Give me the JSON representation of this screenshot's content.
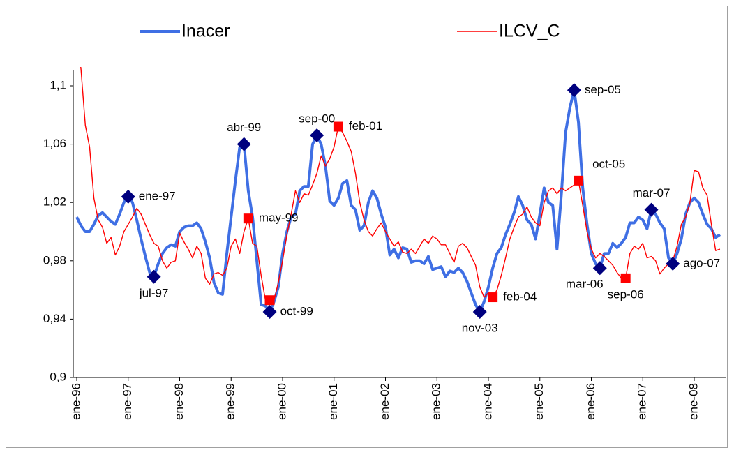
{
  "chart_data": {
    "type": "line",
    "categories": [
      "ene-96",
      null,
      null,
      null,
      null,
      null,
      null,
      null,
      null,
      null,
      null,
      null,
      "ene-97",
      null,
      null,
      null,
      null,
      null,
      null,
      null,
      null,
      null,
      null,
      null,
      "ene-98",
      null,
      null,
      null,
      null,
      null,
      null,
      null,
      null,
      null,
      null,
      null,
      "ene-99",
      null,
      null,
      null,
      null,
      null,
      null,
      null,
      null,
      null,
      null,
      null,
      "ene-00",
      null,
      null,
      null,
      null,
      null,
      null,
      null,
      null,
      null,
      null,
      null,
      "ene-01",
      null,
      null,
      null,
      null,
      null,
      null,
      null,
      null,
      null,
      null,
      null,
      "ene-02",
      null,
      null,
      null,
      null,
      null,
      null,
      null,
      null,
      null,
      null,
      null,
      "ene-03",
      null,
      null,
      null,
      null,
      null,
      null,
      null,
      null,
      null,
      null,
      null,
      "ene-04",
      null,
      null,
      null,
      null,
      null,
      null,
      null,
      null,
      null,
      null,
      null,
      "ene-05",
      null,
      null,
      null,
      null,
      null,
      null,
      null,
      null,
      null,
      null,
      null,
      "ene-06",
      null,
      null,
      null,
      null,
      null,
      null,
      null,
      null,
      null,
      null,
      null,
      "ene-07",
      null,
      null,
      null,
      null,
      null,
      null,
      null,
      null,
      null,
      null,
      null,
      "ene-08",
      null,
      null,
      null,
      null,
      null,
      null
    ],
    "series": [
      {
        "name": "Inacer",
        "color": "#3f6fe4",
        "marker": "diamond",
        "marker_color": "#00007f",
        "values": [
          1.01,
          1.004,
          1.0,
          1.0,
          1.005,
          1.011,
          1.013,
          1.01,
          1.007,
          1.005,
          1.012,
          1.02,
          1.024,
          1.02,
          1.008,
          0.995,
          0.983,
          0.972,
          0.969,
          0.978,
          0.985,
          0.989,
          0.991,
          0.99,
          1.0,
          1.003,
          1.004,
          1.004,
          1.006,
          1.002,
          0.993,
          0.982,
          0.965,
          0.958,
          0.957,
          0.985,
          1.01,
          1.035,
          1.058,
          1.06,
          1.028,
          1.01,
          0.98,
          0.95,
          0.949,
          0.945,
          0.952,
          0.962,
          0.985,
          1.0,
          1.01,
          1.012,
          1.028,
          1.031,
          1.031,
          1.06,
          1.066,
          1.06,
          1.045,
          1.021,
          1.018,
          1.023,
          1.033,
          1.035,
          1.018,
          1.015,
          1.001,
          1.004,
          1.02,
          1.028,
          1.023,
          1.012,
          1.003,
          0.984,
          0.988,
          0.982,
          0.989,
          0.988,
          0.979,
          0.98,
          0.98,
          0.978,
          0.983,
          0.974,
          0.975,
          0.976,
          0.969,
          0.973,
          0.972,
          0.975,
          0.972,
          0.966,
          0.958,
          0.95,
          0.945,
          0.952,
          0.962,
          0.975,
          0.985,
          0.989,
          0.998,
          1.005,
          1.013,
          1.024,
          1.018,
          1.008,
          1.005,
          0.995,
          1.012,
          1.03,
          1.02,
          1.018,
          0.988,
          1.025,
          1.068,
          1.085,
          1.097,
          1.075,
          1.03,
          1.005,
          0.985,
          0.978,
          0.975,
          0.985,
          0.985,
          0.992,
          0.989,
          0.992,
          0.996,
          1.006,
          1.006,
          1.01,
          1.008,
          1.002,
          1.015,
          1.012,
          1.006,
          1.002,
          0.982,
          0.978,
          0.985,
          0.995,
          1.012,
          1.02,
          1.023,
          1.02,
          1.012,
          1.005,
          1.002,
          0.996,
          0.998
        ],
        "markers": [
          {
            "index": 12,
            "label": "ene-97",
            "position": "right"
          },
          {
            "index": 18,
            "label": "jul-97",
            "position": "below"
          },
          {
            "index": 39,
            "label": "abr-99",
            "position": "above"
          },
          {
            "index": 45,
            "label": "oct-99",
            "position": "right"
          },
          {
            "index": 56,
            "label": "sep-00",
            "position": "above"
          },
          {
            "index": 94,
            "label": "nov-03",
            "position": "below"
          },
          {
            "index": 116,
            "label": "sep-05",
            "position": "right"
          },
          {
            "index": 122,
            "label": "mar-06",
            "position": "below-left"
          },
          {
            "index": 134,
            "label": "mar-07",
            "position": "above"
          },
          {
            "index": 139,
            "label": "ago-07",
            "position": "right"
          }
        ]
      },
      {
        "name": "ILCV_C",
        "color": "#ff0000",
        "marker": "square",
        "marker_color": "#ff0000",
        "values": [
          1.14,
          1.111,
          1.073,
          1.058,
          1.023,
          1.008,
          1.003,
          0.992,
          0.996,
          0.984,
          0.99,
          1.0,
          1.005,
          1.01,
          1.016,
          1.012,
          1.005,
          0.998,
          0.992,
          0.99,
          0.98,
          0.975,
          0.979,
          0.98,
          0.999,
          0.993,
          0.988,
          0.982,
          0.99,
          0.985,
          0.968,
          0.964,
          0.971,
          0.972,
          0.97,
          0.975,
          0.99,
          0.995,
          0.985,
          1.0,
          1.009,
          0.992,
          0.99,
          0.97,
          0.953,
          0.953,
          0.953,
          0.965,
          0.98,
          0.998,
          1.012,
          1.028,
          1.02,
          1.026,
          1.025,
          1.032,
          1.04,
          1.052,
          1.045,
          1.05,
          1.058,
          1.072,
          1.068,
          1.062,
          1.055,
          1.04,
          1.02,
          1.008,
          1.0,
          0.997,
          1.002,
          1.006,
          1.0,
          0.995,
          0.99,
          0.993,
          0.986,
          0.985,
          0.988,
          0.985,
          0.99,
          0.995,
          0.992,
          0.997,
          0.995,
          0.991,
          0.991,
          0.985,
          0.979,
          0.99,
          0.992,
          0.989,
          0.983,
          0.977,
          0.962,
          0.955,
          0.958,
          0.955,
          0.96,
          0.97,
          0.982,
          0.995,
          1.003,
          1.01,
          1.012,
          1.017,
          1.01,
          1.006,
          1.004,
          1.02,
          1.028,
          1.03,
          1.026,
          1.03,
          1.028,
          1.03,
          1.032,
          1.035,
          1.018,
          1.0,
          0.988,
          0.982,
          0.985,
          0.983,
          0.98,
          0.977,
          0.972,
          0.968,
          0.968,
          0.985,
          0.99,
          0.988,
          0.992,
          0.982,
          0.983,
          0.98,
          0.971,
          0.975,
          0.978,
          0.98,
          0.99,
          1.005,
          1.01,
          1.02,
          1.042,
          1.041,
          1.03,
          1.025,
          1.005,
          0.987,
          0.988
        ],
        "markers": [
          {
            "index": 40,
            "label": "may-99",
            "position": "right"
          },
          {
            "index": 45
          },
          {
            "index": 61,
            "label": "feb-01",
            "position": "right"
          },
          {
            "index": 97,
            "label": "feb-04",
            "position": "right"
          },
          {
            "index": 117,
            "label": "oct-05",
            "position": "above-right"
          },
          {
            "index": 128,
            "label": "sep-06",
            "position": "below"
          }
        ]
      }
    ],
    "ylim": [
      0.9,
      1.1
    ],
    "yticks": [
      {
        "value": 0.9,
        "label": "0,9"
      },
      {
        "value": 0.94,
        "label": "0,94"
      },
      {
        "value": 0.98,
        "label": "0,98"
      },
      {
        "value": 1.02,
        "label": "1,02"
      },
      {
        "value": 1.06,
        "label": "1,06"
      },
      {
        "value": 1.1,
        "label": "1,1"
      }
    ],
    "grid": false,
    "legend": "top"
  }
}
